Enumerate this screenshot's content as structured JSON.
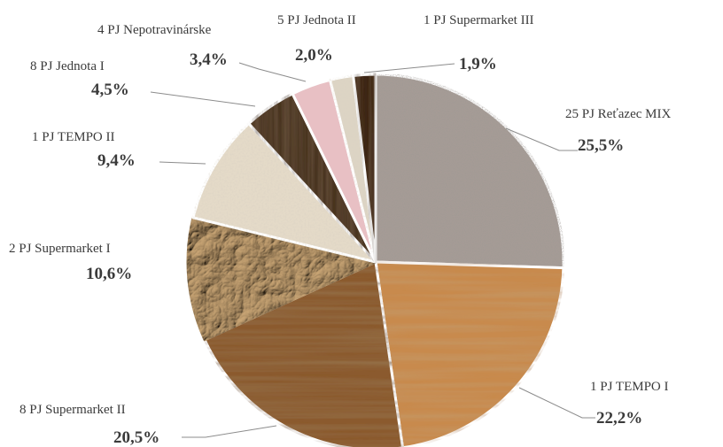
{
  "chart_data": {
    "type": "pie",
    "title": "",
    "slices": [
      {
        "name": "25 PJ Reťazec MIX",
        "value": 25.5,
        "label": "25,5%",
        "texture": "granite",
        "color": "#a69b96"
      },
      {
        "name": "1 PJ TEMPO I",
        "value": 22.2,
        "label": "22,2%",
        "texture": "oak",
        "color": "#c88a4e"
      },
      {
        "name": "8 PJ Supermarket II",
        "value": 20.5,
        "label": "20,5%",
        "texture": "walnut",
        "color": "#8b5a2f"
      },
      {
        "name": "2 PJ Supermarket I",
        "value": 10.6,
        "label": "10,6%",
        "texture": "crumpled-paper",
        "color": "#9a7a52"
      },
      {
        "name": "1 PJ TEMPO II",
        "value": 9.4,
        "label": "9,4%",
        "texture": "canvas",
        "color": "#e4dac8"
      },
      {
        "name": "8 PJ Jednota I",
        "value": 4.5,
        "label": "4,5%",
        "texture": "dark-wood",
        "color": "#4a3424"
      },
      {
        "name": "4 PJ Nepotravinárske",
        "value": 3.4,
        "label": "3,4%",
        "texture": "pink",
        "color": "#e8c0c4"
      },
      {
        "name": "5 PJ Jednota II",
        "value": 2.0,
        "label": "2,0%",
        "texture": "linen",
        "color": "#ddd4c4"
      },
      {
        "name": "1 PJ Supermarket III",
        "value": 1.9,
        "label": "1,9%",
        "texture": "espresso",
        "color": "#3e2818"
      }
    ],
    "legend": "none",
    "data_labels": "outside-with-leader-lines"
  }
}
